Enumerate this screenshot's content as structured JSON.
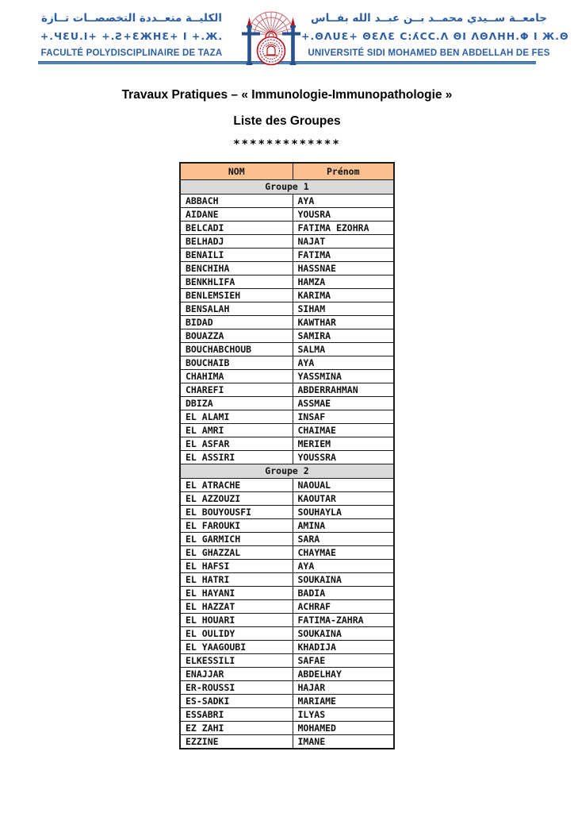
{
  "header": {
    "left": {
      "arabic": "الكليــة متعــددة التخصصــات تــازة",
      "tifinagh": "+.ЧƐU.І+  +.Ƨ+ƐЖНƐ+  І  +.Ж.",
      "french": "FACULTÉ POLYDISCIPLINAIRE DE TAZA"
    },
    "right": {
      "arabic": "جامعــة ســيدي محمــد بــن عبــد الله بفــاس",
      "tifinagh": "+.ΘΛUƐ+ ΘƐΛƐ C:ʎCC.Λ ΘІ ΛΘΛНН.Φ І Ж.Θ",
      "french": "UNIVERSITÉ SIDI MOHAMED BEN ABDELLAH DE FES"
    },
    "logo": {
      "name": "usmba-emblem",
      "red": "#b5121b",
      "blue": "#27508f"
    },
    "text_color": "#2b5ea7",
    "divider_color": "#4f81bd"
  },
  "titles": {
    "main": "Travaux Pratiques – « Immunologie-Immunopathologie »",
    "subtitle": "Liste des Groupes",
    "stars": "*************"
  },
  "table": {
    "columns": [
      "NOM",
      "Prénom"
    ],
    "header_fill": "#fac090",
    "group_fill": "#d9d9d9",
    "groups": [
      {
        "label": "Groupe 1",
        "rows": [
          [
            "ABBACH",
            "AYA"
          ],
          [
            "AIDANE",
            "YOUSRA"
          ],
          [
            "BELCADI",
            "FATIMA EZOHRA"
          ],
          [
            "BELHADJ",
            "NAJAT"
          ],
          [
            "BENAILI",
            "FATIMA"
          ],
          [
            "BENCHIHA",
            "HASSNAE"
          ],
          [
            "BENKHLIFA",
            "HAMZA"
          ],
          [
            "BENLEMSIEH",
            "KARIMA"
          ],
          [
            "BENSALAH",
            "SIHAM"
          ],
          [
            "BIDAD",
            "KAWTHAR"
          ],
          [
            "BOUAZZA",
            "SAMIRA"
          ],
          [
            "BOUCHABCHOUB",
            "SALMA"
          ],
          [
            "BOUCHAIB",
            "AYA"
          ],
          [
            "CHAHIMA",
            "YASSMINA"
          ],
          [
            "CHAREFI",
            "ABDERRAHMAN"
          ],
          [
            "DBIZA",
            "ASSMAE"
          ],
          [
            "EL ALAMI",
            "INSAF"
          ],
          [
            "EL AMRI",
            "CHAIMAE"
          ],
          [
            "EL ASFAR",
            "MERIEM"
          ],
          [
            "EL ASSIRI",
            "YOUSSRA"
          ]
        ]
      },
      {
        "label": "Groupe 2",
        "rows": [
          [
            "EL ATRACHE",
            "NAOUAL"
          ],
          [
            "EL AZZOUZI",
            "KAOUTAR"
          ],
          [
            "EL BOUYOUSFI",
            "SOUHAYLA"
          ],
          [
            "EL FAROUKI",
            "AMINA"
          ],
          [
            "EL GARMICH",
            "SARA"
          ],
          [
            "EL GHAZZAL",
            "CHAYMAE"
          ],
          [
            "EL HAFSI",
            "AYA"
          ],
          [
            "EL HATRI",
            "SOUKAINA"
          ],
          [
            "EL HAYANI",
            "BADIA"
          ],
          [
            "EL HAZZAT",
            "ACHRAF"
          ],
          [
            "EL HOUARI",
            "FATIMA-ZAHRA"
          ],
          [
            "EL OULIDY",
            "SOUKAINA"
          ],
          [
            "EL YAAGOUBI",
            "KHADIJA"
          ],
          [
            "ELKESSILI",
            "SAFAE"
          ],
          [
            "ENAJJAR",
            "ABDELHAY"
          ],
          [
            "ER-ROUSSI",
            "HAJAR"
          ],
          [
            "ES-SADKI",
            "MARIAME"
          ],
          [
            "ESSABRI",
            "ILYAS"
          ],
          [
            "EZ ZAHI",
            "MOHAMED"
          ],
          [
            "EZZINE",
            "IMANE"
          ]
        ]
      }
    ]
  }
}
